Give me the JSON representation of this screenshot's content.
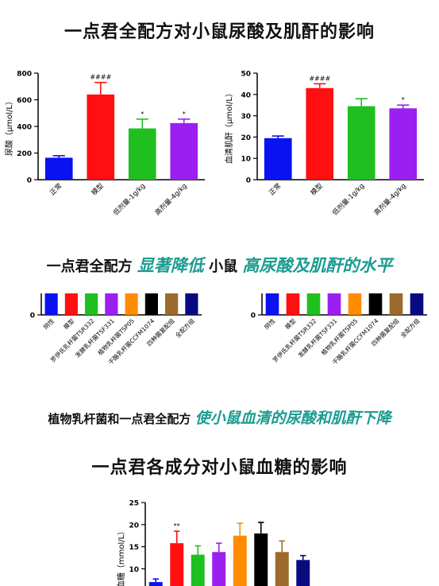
{
  "page": {
    "title1": "一点君全配方对小鼠尿酸及肌酐的影响",
    "headline1": {
      "a": "一点君全配方",
      "b": "显著降低",
      "c": "小鼠",
      "d": "高尿酸及肌酐的水平"
    },
    "headline2": {
      "a": "植物乳杆菌和一点君全配方",
      "b": "使小鼠血清的尿酸和肌酐下降"
    },
    "title2": "一点君各成分对小鼠血糖的影响",
    "accent_color": "#1a9c91"
  },
  "chart_data": [
    {
      "type": "bar",
      "ylabel": "尿酸（μmol/L）",
      "ylim": [
        0,
        800
      ],
      "yticks": [
        0,
        200,
        400,
        600,
        800
      ],
      "categories": [
        "正常",
        "模型",
        "低剂量-1g/kg",
        "高剂量-4g/kg"
      ],
      "values": [
        165,
        640,
        385,
        425
      ],
      "errors": [
        15,
        90,
        70,
        30
      ],
      "annotations": [
        "",
        "####",
        "*",
        "*"
      ],
      "colors": [
        "#0a12f0",
        "#ff0f0f",
        "#1fbf1f",
        "#9b1ff0"
      ]
    },
    {
      "type": "bar",
      "ylabel": "血清肌酐（μmol/L）",
      "ylim": [
        0,
        50
      ],
      "yticks": [
        0,
        10,
        20,
        30,
        40,
        50
      ],
      "categories": [
        "正常",
        "模型",
        "低剂量-1g/kg",
        "高剂量-4g/kg"
      ],
      "values": [
        19.5,
        43,
        34.5,
        33.5
      ],
      "errors": [
        1,
        2,
        3.5,
        1.5
      ],
      "annotations": [
        "",
        "####",
        "",
        "*"
      ],
      "colors": [
        "#0a12f0",
        "#ff0f0f",
        "#1fbf1f",
        "#9b1ff0"
      ]
    },
    {
      "type": "bar",
      "categories": [
        "阴性",
        "模型",
        "罗伊氏乳杆菌TSR332",
        "发酵乳杆菌TSF331",
        "植物乳杆菌TSP05",
        "干酪乳杆菌CCFM1074",
        "四种菌复配组",
        "全配方组"
      ],
      "colors": [
        "#0a12f0",
        "#ff0f0f",
        "#1fbf1f",
        "#9b1ff0",
        "#ff8c00",
        "#000000",
        "#9b6a2c",
        "#0a0a80"
      ],
      "ylim": [
        0,
        1
      ],
      "yticks": [
        0
      ]
    },
    {
      "type": "bar",
      "categories": [
        "阴性",
        "模型",
        "罗伊氏乳杆菌TSR332",
        "发酵乳杆菌TSF331",
        "植物乳杆菌TSP05",
        "干酪乳杆菌CCFM1074",
        "四种菌复配组",
        "全配方组"
      ],
      "colors": [
        "#0a12f0",
        "#ff0f0f",
        "#1fbf1f",
        "#9b1ff0",
        "#ff8c00",
        "#000000",
        "#9b6a2c",
        "#0a0a80"
      ],
      "ylim": [
        0,
        1
      ],
      "yticks": [
        0
      ]
    },
    {
      "type": "bar",
      "ylabel": "血糖（mmol/L）",
      "ylim": [
        0,
        25
      ],
      "yticks": [
        10,
        15,
        20,
        25
      ],
      "values": [
        7,
        15.8,
        13.2,
        13.8,
        17.5,
        18,
        13.8,
        12
      ],
      "errors": [
        0.7,
        2.7,
        2,
        2,
        2.8,
        2.5,
        2.5,
        1
      ],
      "annotations": [
        "",
        "**",
        "",
        "",
        "",
        "",
        "",
        ""
      ],
      "colors": [
        "#0a12f0",
        "#ff0f0f",
        "#1fbf1f",
        "#9b1ff0",
        "#ff8c00",
        "#000000",
        "#9b6a2c",
        "#0a0a80"
      ]
    }
  ]
}
